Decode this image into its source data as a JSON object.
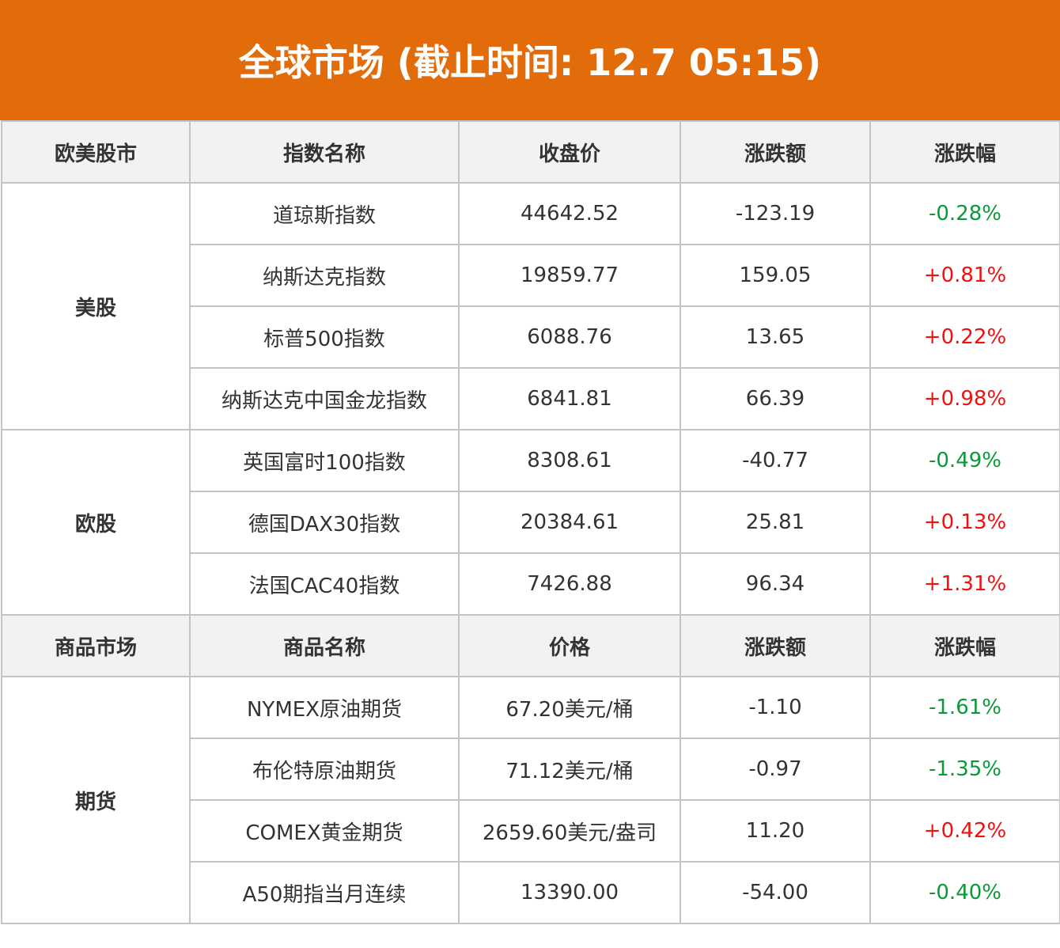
{
  "title": "全球市场 (截止时间: 12.7 05:15)",
  "colors": {
    "header": "#e36c0a",
    "up": "#f01010",
    "down": "#0a9a3a"
  },
  "stocks": {
    "headers": [
      "欧美股市",
      "指数名称",
      "收盘价",
      "涨跌额",
      "涨跌幅"
    ],
    "groups": [
      {
        "name": "美股",
        "rows": [
          {
            "name": "道琼斯指数",
            "price": "44642.52",
            "change": "-123.19",
            "pct": "-0.28%",
            "dir": "down"
          },
          {
            "name": "纳斯达克指数",
            "price": "19859.77",
            "change": "159.05",
            "pct": "+0.81%",
            "dir": "up"
          },
          {
            "name": "标普500指数",
            "price": "6088.76",
            "change": "13.65",
            "pct": "+0.22%",
            "dir": "up"
          },
          {
            "name": "纳斯达克中国金龙指数",
            "price": "6841.81",
            "change": "66.39",
            "pct": "+0.98%",
            "dir": "up"
          }
        ]
      },
      {
        "name": "欧股",
        "rows": [
          {
            "name": "英国富时100指数",
            "price": "8308.61",
            "change": "-40.77",
            "pct": "-0.49%",
            "dir": "down"
          },
          {
            "name": "德国DAX30指数",
            "price": "20384.61",
            "change": "25.81",
            "pct": "+0.13%",
            "dir": "up"
          },
          {
            "name": "法国CAC40指数",
            "price": "7426.88",
            "change": "96.34",
            "pct": "+1.31%",
            "dir": "up"
          }
        ]
      }
    ]
  },
  "commodities": {
    "headers": [
      "商品市场",
      "商品名称",
      "价格",
      "涨跌额",
      "涨跌幅"
    ],
    "groups": [
      {
        "name": "期货",
        "rows": [
          {
            "name": "NYMEX原油期货",
            "price": "67.20美元/桶",
            "change": "-1.10",
            "pct": "-1.61%",
            "dir": "down"
          },
          {
            "name": "布伦特原油期货",
            "price": "71.12美元/桶",
            "change": "-0.97",
            "pct": "-1.35%",
            "dir": "down"
          },
          {
            "name": "COMEX黄金期货",
            "price": "2659.60美元/盎司",
            "change": "11.20",
            "pct": "+0.42%",
            "dir": "up"
          },
          {
            "name": "A50期指当月连续",
            "price": "13390.00",
            "change": "-54.00",
            "pct": "-0.40%",
            "dir": "down"
          }
        ]
      }
    ]
  }
}
